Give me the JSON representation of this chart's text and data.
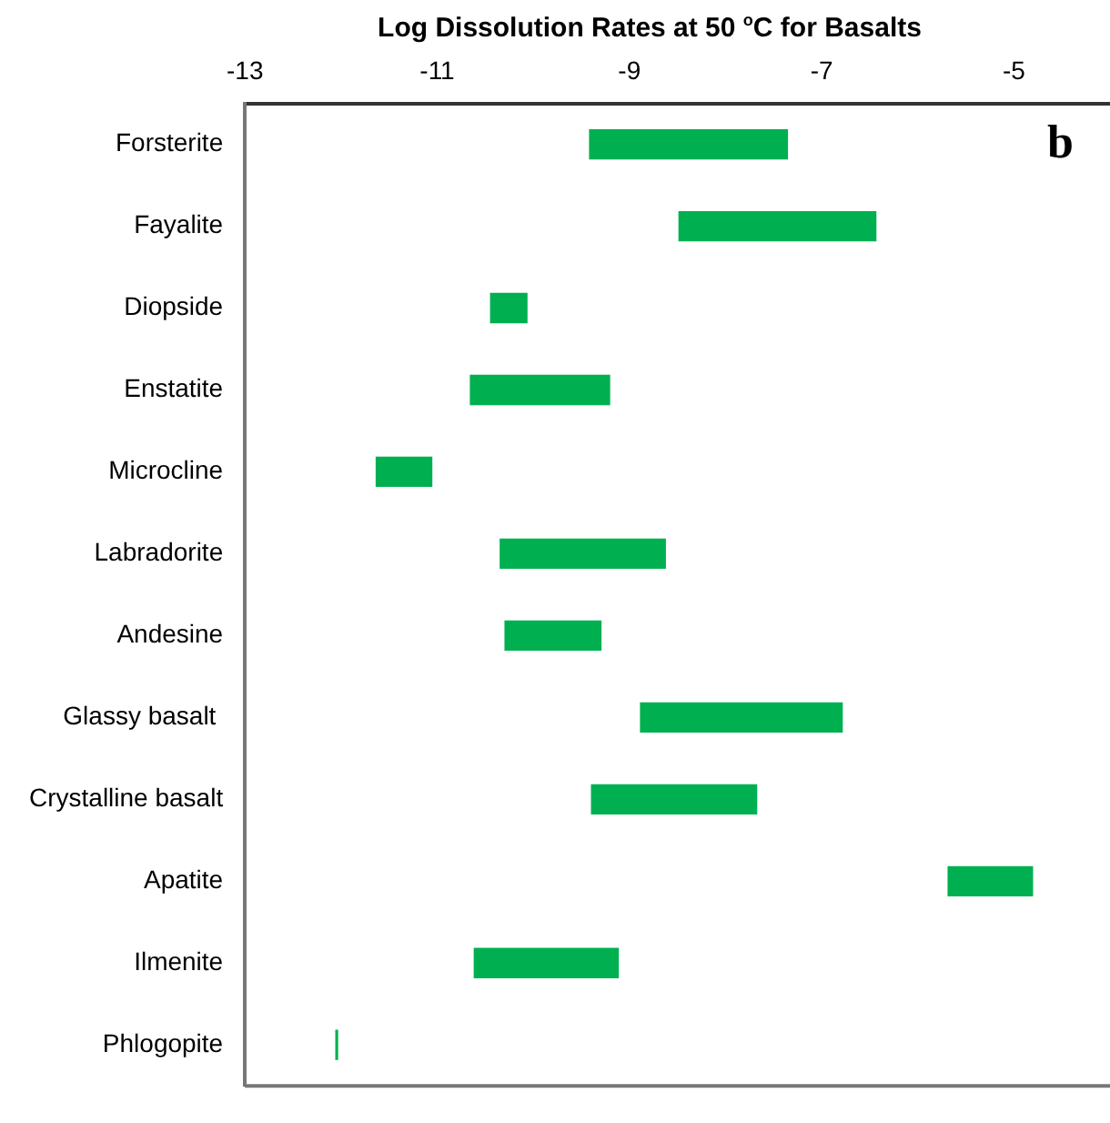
{
  "chart_data": {
    "type": "bar",
    "orientation": "horizontal",
    "title": "Log Dissolution Rates at 50 $^{o}$C for Basalts",
    "categories": [
      "Forsterite",
      "Fayalite",
      "Diopside",
      "Enstatite",
      "Microcline",
      "Labradorite",
      "Andesine",
      "Glassy basalt ",
      "Crystalline basalt",
      "Apatite",
      "Ilmenite",
      "Phlogopite"
    ],
    "base": [
      -9.42,
      -8.49,
      -10.45,
      -10.66,
      -11.64,
      -10.35,
      -10.3,
      -8.89,
      -9.4,
      -5.69,
      -10.62,
      -12.06
    ],
    "values": [
      2.07,
      2.06,
      0.39,
      1.46,
      0.59,
      1.73,
      1.01,
      2.11,
      1.73,
      0.89,
      1.51,
      0.03
    ],
    "color": "#00b050",
    "xlim": [
      -13,
      -4
    ],
    "xticks": [
      -13,
      -11,
      -9,
      -7,
      -5
    ],
    "grid": false,
    "legend": false,
    "annotations": [
      "b"
    ]
  }
}
